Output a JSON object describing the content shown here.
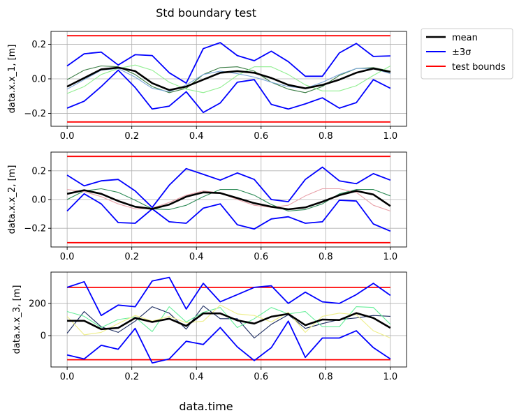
{
  "figure": {
    "title": "Std boundary test",
    "xlabel": "data.time"
  },
  "legend": {
    "placement": "outside-top-right",
    "entries": [
      {
        "label": "mean",
        "color": "#000000"
      },
      {
        "label": "±3σ",
        "color": "#0000ff"
      },
      {
        "label": "test bounds",
        "color": "#ff0000"
      }
    ]
  },
  "chart_data": [
    {
      "type": "line",
      "ylabel": "data.x.x_1, [m]",
      "xlim": [
        -0.05,
        1.05
      ],
      "ylim": [
        -0.275,
        0.275
      ],
      "xticks": [
        0.0,
        0.2,
        0.4,
        0.6,
        0.8,
        1.0
      ],
      "xtick_labels": [
        "0.0",
        "0.2",
        "0.4",
        "0.6",
        "0.8",
        "1.0"
      ],
      "yticks": [
        -0.2,
        0.0,
        0.2
      ],
      "ytick_labels": [
        "−0.2",
        "0.0",
        "0.2"
      ],
      "grid": true,
      "x": [
        0.0,
        0.0526,
        0.1053,
        0.1579,
        0.2105,
        0.2632,
        0.3158,
        0.3684,
        0.4211,
        0.4737,
        0.5263,
        0.5789,
        0.6316,
        0.6842,
        0.7368,
        0.7895,
        0.8421,
        0.8947,
        0.9474,
        1.0
      ],
      "mean": [
        -0.045,
        0.005,
        0.055,
        0.065,
        0.045,
        -0.025,
        -0.065,
        -0.045,
        -0.005,
        0.035,
        0.045,
        0.035,
        0.005,
        -0.035,
        -0.055,
        -0.035,
        -0.005,
        0.035,
        0.06,
        0.04
      ],
      "upper": [
        0.075,
        0.145,
        0.155,
        0.08,
        0.14,
        0.135,
        0.035,
        -0.025,
        0.175,
        0.21,
        0.135,
        0.105,
        0.16,
        0.1,
        0.015,
        0.015,
        0.15,
        0.205,
        0.13,
        0.133
      ],
      "lower": [
        -0.17,
        -0.13,
        -0.045,
        0.05,
        -0.05,
        -0.175,
        -0.158,
        -0.075,
        -0.195,
        -0.14,
        -0.02,
        -0.005,
        -0.148,
        -0.175,
        -0.145,
        -0.11,
        -0.17,
        -0.138,
        -0.005,
        -0.055
      ],
      "bounds": [
        0.25,
        -0.25
      ],
      "samples": [
        {
          "color": "#3a7d44",
          "values": [
            -0.005,
            0.05,
            0.075,
            0.07,
            0.025,
            -0.045,
            -0.08,
            -0.055,
            0.025,
            0.065,
            0.07,
            0.045,
            -0.02,
            -0.06,
            -0.08,
            -0.045,
            0.02,
            0.06,
            0.065,
            0.045
          ]
        },
        {
          "color": "#90ee90",
          "values": [
            -0.085,
            -0.045,
            0.025,
            0.06,
            0.08,
            0.05,
            -0.02,
            -0.06,
            -0.08,
            -0.05,
            0.02,
            0.07,
            0.07,
            0.025,
            -0.035,
            -0.07,
            -0.07,
            -0.04,
            0.02,
            0.075
          ]
        },
        {
          "color": "#7aa6d8",
          "values": [
            -0.06,
            -0.005,
            0.05,
            0.06,
            0.01,
            -0.055,
            -0.075,
            -0.035,
            0.025,
            0.045,
            0.03,
            0.01,
            -0.02,
            -0.045,
            -0.055,
            -0.02,
            0.025,
            0.06,
            0.06,
            0.03
          ]
        }
      ]
    },
    {
      "type": "line",
      "ylabel": "data.x.x_2, [m]",
      "xlim": [
        -0.05,
        1.05
      ],
      "ylim": [
        -0.33,
        0.33
      ],
      "xticks": [
        0.0,
        0.2,
        0.4,
        0.6,
        0.8,
        1.0
      ],
      "xtick_labels": [
        "0.0",
        "0.2",
        "0.4",
        "0.6",
        "0.8",
        "1.0"
      ],
      "yticks": [
        -0.2,
        0.0,
        0.2
      ],
      "ytick_labels": [
        "−0.2",
        "0.0",
        "0.2"
      ],
      "grid": true,
      "x": [
        0.0,
        0.0526,
        0.1053,
        0.1579,
        0.2105,
        0.2632,
        0.3158,
        0.3684,
        0.4211,
        0.4737,
        0.5263,
        0.5789,
        0.6316,
        0.6842,
        0.7368,
        0.7895,
        0.8421,
        0.8947,
        0.9474,
        1.0
      ],
      "mean": [
        0.04,
        0.065,
        0.04,
        -0.01,
        -0.05,
        -0.065,
        -0.035,
        0.02,
        0.05,
        0.045,
        0.01,
        -0.025,
        -0.05,
        -0.068,
        -0.055,
        -0.015,
        0.03,
        0.06,
        0.035,
        -0.045
      ],
      "upper": [
        0.17,
        0.095,
        0.13,
        0.14,
        0.06,
        -0.055,
        0.1,
        0.215,
        0.175,
        0.135,
        0.185,
        0.14,
        0.0,
        -0.015,
        0.14,
        0.225,
        0.13,
        0.11,
        0.18,
        0.135
      ],
      "lower": [
        -0.08,
        0.04,
        -0.03,
        -0.16,
        -0.165,
        -0.065,
        -0.155,
        -0.165,
        -0.06,
        -0.03,
        -0.175,
        -0.205,
        -0.135,
        -0.12,
        -0.165,
        -0.155,
        -0.005,
        -0.01,
        -0.17,
        -0.22
      ],
      "bounds": [
        0.3,
        -0.3
      ],
      "samples": [
        {
          "color": "#2e8b57",
          "values": [
            0.0,
            0.06,
            0.075,
            0.05,
            -0.005,
            -0.065,
            -0.07,
            -0.04,
            0.02,
            0.07,
            0.07,
            0.03,
            -0.035,
            -0.08,
            -0.07,
            -0.03,
            0.04,
            0.07,
            0.07,
            0.025
          ]
        },
        {
          "color": "#e8a0a8",
          "values": [
            0.07,
            0.055,
            0.02,
            -0.03,
            -0.065,
            -0.06,
            -0.02,
            0.03,
            0.06,
            0.045,
            0.0,
            -0.04,
            -0.055,
            -0.04,
            0.025,
            0.075,
            0.075,
            0.05,
            -0.04,
            -0.08
          ]
        }
      ]
    },
    {
      "type": "line",
      "ylabel": "data.x.x_3, [m]",
      "xlim": [
        -0.05,
        1.05
      ],
      "ylim": [
        -195,
        395
      ],
      "xticks": [
        0.0,
        0.2,
        0.4,
        0.6,
        0.8,
        1.0
      ],
      "xtick_labels": [
        "0.0",
        "0.2",
        "0.4",
        "0.6",
        "0.8",
        "1.0"
      ],
      "yticks": [
        0,
        200
      ],
      "ytick_labels": [
        "0",
        "200"
      ],
      "grid": true,
      "x": [
        0.0,
        0.0526,
        0.1053,
        0.1579,
        0.2105,
        0.2632,
        0.3158,
        0.3684,
        0.4211,
        0.4737,
        0.5263,
        0.5789,
        0.6316,
        0.6842,
        0.7368,
        0.7895,
        0.8421,
        0.8947,
        0.9474,
        1.0
      ],
      "mean": [
        92,
        92,
        40,
        48,
        110,
        85,
        105,
        60,
        138,
        138,
        95,
        75,
        118,
        135,
        65,
        100,
        97,
        140,
        110,
        48
      ],
      "upper": [
        300,
        335,
        125,
        190,
        180,
        340,
        362,
        165,
        325,
        210,
        255,
        300,
        310,
        200,
        270,
        210,
        200,
        255,
        325,
        250
      ],
      "lower": [
        -120,
        -145,
        -60,
        -85,
        45,
        -170,
        -145,
        -35,
        -55,
        50,
        -70,
        -155,
        -75,
        90,
        -135,
        -15,
        -15,
        30,
        -75,
        -145
      ],
      "bounds": [
        300,
        -150
      ],
      "samples": [
        {
          "color": "#1a2a5e",
          "values": [
            15,
            150,
            55,
            20,
            90,
            180,
            140,
            40,
            185,
            105,
            105,
            -15,
            70,
            130,
            45,
            75,
            100,
            110,
            125,
            120
          ]
        },
        {
          "color": "#66ee99",
          "values": [
            150,
            120,
            50,
            100,
            115,
            25,
            180,
            85,
            145,
            175,
            50,
            105,
            175,
            135,
            150,
            55,
            55,
            180,
            175,
            70
          ]
        },
        {
          "color": "#eeee88",
          "values": [
            120,
            5,
            20,
            75,
            125,
            90,
            120,
            80,
            90,
            190,
            135,
            125,
            85,
            145,
            20,
            120,
            140,
            130,
            30,
            -15
          ]
        }
      ]
    }
  ]
}
